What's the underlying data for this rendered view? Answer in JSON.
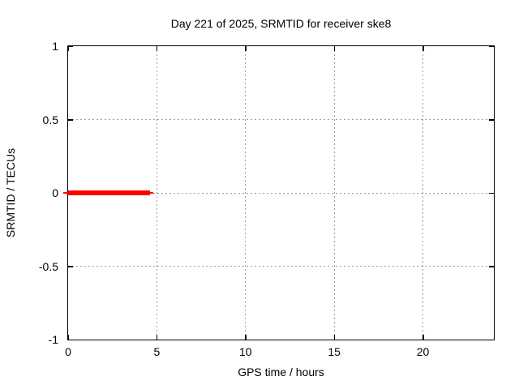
{
  "chart_data": {
    "type": "line",
    "title": "Day 221 of 2025, SRMTID for receiver ske8",
    "xlabel": "GPS time / hours",
    "ylabel": "SRMTID / TECUs",
    "xlim": [
      0,
      24
    ],
    "ylim": [
      -1,
      1
    ],
    "grid": true,
    "grid_color": "#9e9e9e",
    "border_color": "#000000",
    "background_color": "#ffffff",
    "xticks": [
      {
        "value": 0,
        "label": "0"
      },
      {
        "value": 5,
        "label": "5"
      },
      {
        "value": 10,
        "label": "10"
      },
      {
        "value": 15,
        "label": "15"
      },
      {
        "value": 20,
        "label": "20"
      }
    ],
    "yticks": [
      {
        "value": 1,
        "label": "1"
      },
      {
        "value": 0.5,
        "label": "0.5"
      },
      {
        "value": 0,
        "label": "0"
      },
      {
        "value": -0.5,
        "label": "-0.5"
      },
      {
        "value": -1,
        "label": "-1"
      }
    ],
    "series": [
      {
        "name": "SRMTID",
        "color": "#ff0000",
        "description": "SRMTID approximately 0 TECUs from hour 0 to about hour 4.7; no data afterwards",
        "segments": [
          {
            "y": 0,
            "x1": -0.23,
            "x2": 4.8,
            "lw": 2
          },
          {
            "y": 0,
            "x1": 0,
            "x2": 4.66,
            "lw": 6
          }
        ]
      }
    ]
  }
}
